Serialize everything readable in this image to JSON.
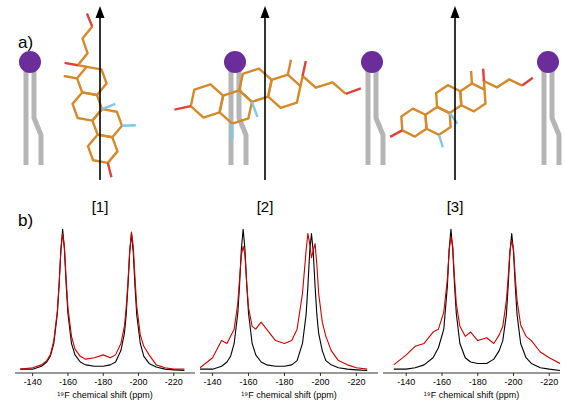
{
  "figure": {
    "panel_labels": [
      "a)",
      "b)"
    ],
    "structure_labels": [
      "[1]",
      "[2]",
      "[3]"
    ]
  },
  "chart_data": [
    {
      "type": "line",
      "x_label": "¹⁹F chemical shift (ppm)",
      "x": [
        -133,
        -140,
        -145,
        -148,
        -150,
        -152,
        -154,
        -155,
        -156,
        -157,
        -158,
        -159,
        -160,
        -162,
        -164,
        -167,
        -170,
        -175,
        -180,
        -184,
        -187,
        -190,
        -192,
        -193,
        -194,
        -195,
        -196,
        -197,
        -198,
        -199,
        -201,
        -203,
        -206,
        -210,
        -215,
        -220,
        -226
      ],
      "xlim": [
        -130,
        -232
      ],
      "xticks": [
        -140,
        -160,
        -180,
        -200,
        -220
      ],
      "ylim": [
        0,
        1.1
      ],
      "tick_labels": "x",
      "series": [
        {
          "color": "#000000",
          "values": [
            0.02,
            0.02,
            0.04,
            0.07,
            0.11,
            0.2,
            0.41,
            0.61,
            0.86,
            1.0,
            0.86,
            0.61,
            0.41,
            0.2,
            0.12,
            0.07,
            0.05,
            0.04,
            0.04,
            0.05,
            0.07,
            0.15,
            0.27,
            0.4,
            0.6,
            0.84,
            0.97,
            0.84,
            0.6,
            0.4,
            0.2,
            0.11,
            0.06,
            0.035,
            0.02,
            0.015,
            0.01
          ]
        },
        {
          "color": "#cc0000",
          "values": [
            0.02,
            0.03,
            0.05,
            0.08,
            0.12,
            0.22,
            0.43,
            0.62,
            0.85,
            0.97,
            0.88,
            0.65,
            0.45,
            0.25,
            0.16,
            0.11,
            0.09,
            0.1,
            0.12,
            0.1,
            0.12,
            0.2,
            0.32,
            0.45,
            0.63,
            0.85,
            0.98,
            0.88,
            0.66,
            0.46,
            0.26,
            0.18,
            0.12,
            0.05,
            0.03,
            0.02,
            0.02
          ]
        }
      ]
    },
    {
      "type": "line",
      "x_label": "¹⁹F chemical shift (ppm)",
      "x": [
        -133,
        -140,
        -145,
        -148,
        -150,
        -152,
        -154,
        -155,
        -156,
        -157,
        -158,
        -159,
        -160,
        -162,
        -164,
        -167,
        -170,
        -175,
        -180,
        -184,
        -187,
        -190,
        -192,
        -193,
        -194,
        -195,
        -196,
        -197,
        -198,
        -199,
        -201,
        -203,
        -206,
        -210,
        -215,
        -220,
        -226
      ],
      "xlim": [
        -133,
        -232
      ],
      "xticks": [
        -140,
        -160,
        -180,
        -200,
        -220
      ],
      "ylim": [
        0,
        1.1
      ],
      "tick_labels": "x",
      "series": [
        {
          "color": "#000000",
          "values": [
            0.02,
            0.02,
            0.04,
            0.07,
            0.11,
            0.2,
            0.41,
            0.61,
            0.86,
            1.0,
            0.86,
            0.61,
            0.41,
            0.2,
            0.12,
            0.07,
            0.05,
            0.04,
            0.04,
            0.05,
            0.08,
            0.2,
            0.4,
            0.6,
            0.84,
            0.97,
            0.84,
            0.6,
            0.4,
            0.27,
            0.15,
            0.08,
            0.05,
            0.03,
            0.02,
            0.015,
            0.01
          ]
        },
        {
          "color": "#cc0000",
          "values": [
            0.03,
            0.1,
            0.22,
            0.2,
            0.25,
            0.3,
            0.48,
            0.65,
            0.82,
            0.88,
            0.82,
            0.62,
            0.45,
            0.32,
            0.3,
            0.35,
            0.3,
            0.22,
            0.2,
            0.22,
            0.3,
            0.55,
            0.85,
            0.97,
            0.9,
            0.8,
            0.85,
            0.9,
            0.75,
            0.55,
            0.35,
            0.25,
            0.15,
            0.08,
            0.05,
            0.03,
            0.02
          ]
        }
      ]
    },
    {
      "type": "line",
      "x_label": "¹⁹F chemical shift (ppm)",
      "x": [
        -133,
        -140,
        -145,
        -150,
        -155,
        -158,
        -161,
        -163,
        -164,
        -165,
        -166,
        -167,
        -168,
        -170,
        -173,
        -176,
        -180,
        -185,
        -189,
        -192,
        -194,
        -196,
        -197,
        -198,
        -199,
        -200,
        -201,
        -202,
        -204,
        -207,
        -210,
        -215,
        -220,
        -226
      ],
      "xlim": [
        -127,
        -226
      ],
      "xticks": [
        -140,
        -160,
        -180,
        -200,
        -220
      ],
      "ylim": [
        0,
        1.1
      ],
      "tick_labels": "x",
      "series": [
        {
          "color": "#000000",
          "values": [
            0.02,
            0.02,
            0.03,
            0.05,
            0.1,
            0.17,
            0.3,
            0.6,
            0.86,
            1.0,
            0.86,
            0.61,
            0.41,
            0.2,
            0.1,
            0.07,
            0.06,
            0.06,
            0.09,
            0.15,
            0.22,
            0.4,
            0.6,
            0.84,
            0.97,
            0.84,
            0.6,
            0.4,
            0.2,
            0.1,
            0.06,
            0.03,
            0.02,
            0.01
          ]
        },
        {
          "color": "#cc0000",
          "values": [
            0.05,
            0.12,
            0.18,
            0.2,
            0.28,
            0.3,
            0.42,
            0.65,
            0.85,
            0.95,
            0.88,
            0.66,
            0.48,
            0.32,
            0.25,
            0.28,
            0.22,
            0.24,
            0.2,
            0.26,
            0.32,
            0.5,
            0.66,
            0.85,
            0.92,
            0.86,
            0.66,
            0.5,
            0.33,
            0.25,
            0.22,
            0.14,
            0.1,
            0.06
          ]
        }
      ]
    }
  ]
}
